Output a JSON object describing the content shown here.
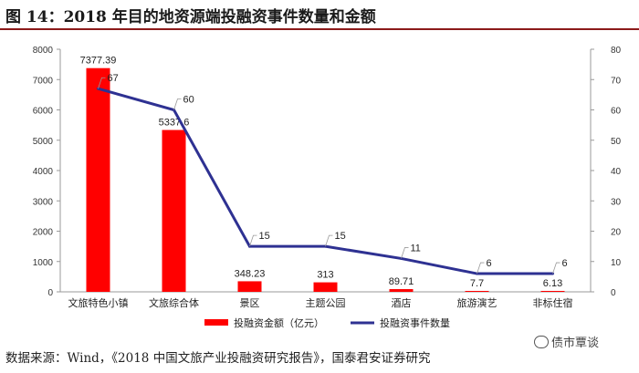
{
  "header": {
    "title": "图 14：2018 年目的地资源端投融资事件数量和金额"
  },
  "footer": {
    "source": "数据来源：Wind，《2018 中国文旅产业投融资研究报告》，国泰君安证券研究"
  },
  "watermark": {
    "text": "债市覃谈",
    "icon": "wechat-icon"
  },
  "colors": {
    "bar": "#ff0000",
    "line": "#2e3192",
    "axis_text": "#333333"
  },
  "chart_data": {
    "type": "bar",
    "categories": [
      "文旅特色小镇",
      "文旅综合体",
      "景区",
      "主题公园",
      "酒店",
      "旅游演艺",
      "非标住宿"
    ],
    "series": [
      {
        "name": "投融资金额（亿元）",
        "type": "bar",
        "axis": "left",
        "values": [
          7377.39,
          5337.6,
          348.23,
          313,
          89.71,
          7.7,
          6.13
        ],
        "labels": [
          "7377.39",
          "5337.6",
          "348.23",
          "313",
          "89.71",
          "7.7",
          "6.13"
        ]
      },
      {
        "name": "投融资事件数量",
        "type": "line",
        "axis": "right",
        "values": [
          67,
          60,
          15,
          15,
          11,
          6,
          6
        ],
        "labels": [
          "67",
          "60",
          "15",
          "15",
          "11",
          "6",
          "6"
        ]
      }
    ],
    "y_left": {
      "min": 0,
      "max": 8000,
      "ticks": [
        "0",
        "1000",
        "2000",
        "3000",
        "4000",
        "5000",
        "6000",
        "7000",
        "8000"
      ]
    },
    "y_right": {
      "min": 0,
      "max": 80,
      "ticks": [
        "0",
        "10",
        "20",
        "30",
        "40",
        "50",
        "60",
        "70",
        "80"
      ]
    },
    "grid": false,
    "legend": "bottom"
  }
}
